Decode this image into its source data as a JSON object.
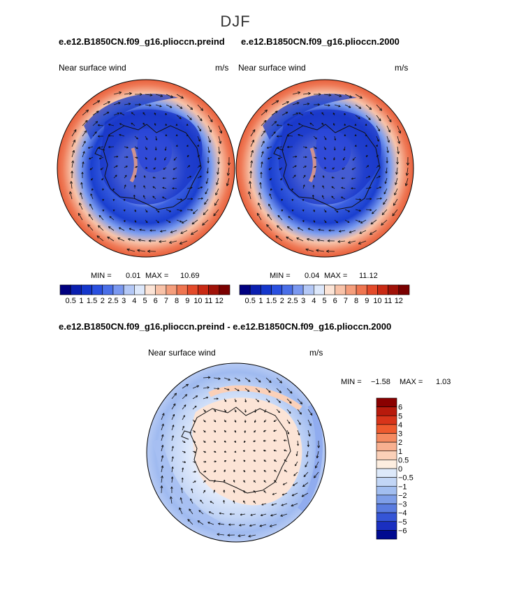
{
  "figure": {
    "season": "DJF"
  },
  "chart_data": [
    {
      "type": "heatmap",
      "projection": "south-polar-stereographic",
      "case_label": "e.e12.B1850CN.f09_g16.plioccn.preind",
      "variable_label": "Near surface wind",
      "units_label": "m/s",
      "min_label": "MIN =",
      "min_value": "0.01",
      "max_label": "MAX =",
      "max_value": "10.69",
      "colorbar": {
        "orientation": "horizontal",
        "levels": [
          "0.5",
          "1",
          "1.5",
          "2",
          "2.5",
          "3",
          "4",
          "5",
          "6",
          "7",
          "8",
          "9",
          "10",
          "11",
          "12"
        ],
        "colors": [
          "#000080",
          "#0a1fb0",
          "#1537cc",
          "#2a50e0",
          "#4a6fe8",
          "#7a98f0",
          "#b4c8f6",
          "#dde8fb",
          "#fce4d6",
          "#f8c2a8",
          "#f59e7c",
          "#ef7550",
          "#e34a2a",
          "#c92a14",
          "#a01208",
          "#7a0000"
        ]
      }
    },
    {
      "type": "heatmap",
      "projection": "south-polar-stereographic",
      "case_label": "e.e12.B1850CN.f09_g16.plioccn.2000",
      "variable_label": "Near surface wind",
      "units_label": "m/s",
      "min_label": "MIN =",
      "min_value": "0.04",
      "max_label": "MAX =",
      "max_value": "11.12",
      "colorbar": {
        "orientation": "horizontal",
        "levels": [
          "0.5",
          "1",
          "1.5",
          "2",
          "2.5",
          "3",
          "4",
          "5",
          "6",
          "7",
          "8",
          "9",
          "10",
          "11",
          "12"
        ],
        "colors": [
          "#000080",
          "#0a1fb0",
          "#1537cc",
          "#2a50e0",
          "#4a6fe8",
          "#7a98f0",
          "#b4c8f6",
          "#dde8fb",
          "#fce4d6",
          "#f8c2a8",
          "#f59e7c",
          "#ef7550",
          "#e34a2a",
          "#c92a14",
          "#a01208",
          "#7a0000"
        ]
      }
    },
    {
      "type": "heatmap",
      "projection": "south-polar-stereographic",
      "case_label": "e.e12.B1850CN.f09_g16.plioccn.preind - e.e12.B1850CN.f09_g16.plioccn.2000",
      "variable_label": "Near surface wind",
      "units_label": "m/s",
      "min_label": "MIN =",
      "min_value": "−1.58",
      "max_label": "MAX =",
      "max_value": "1.03",
      "colorbar": {
        "orientation": "vertical",
        "levels": [
          "6",
          "5",
          "4",
          "3",
          "2",
          "1",
          "0.5",
          "0",
          "−0.5",
          "−1",
          "−2",
          "−3",
          "−4",
          "−5",
          "−6"
        ],
        "colors": [
          "#8a0000",
          "#b81a0c",
          "#d8341a",
          "#ee5a2e",
          "#f58a60",
          "#f8b090",
          "#fbd0b8",
          "#fdeee0",
          "#dde9fa",
          "#c2d6f6",
          "#a2bef0",
          "#7e9ee8",
          "#5a7ce0",
          "#3555d6",
          "#1a2fc0",
          "#000a90"
        ]
      }
    }
  ]
}
